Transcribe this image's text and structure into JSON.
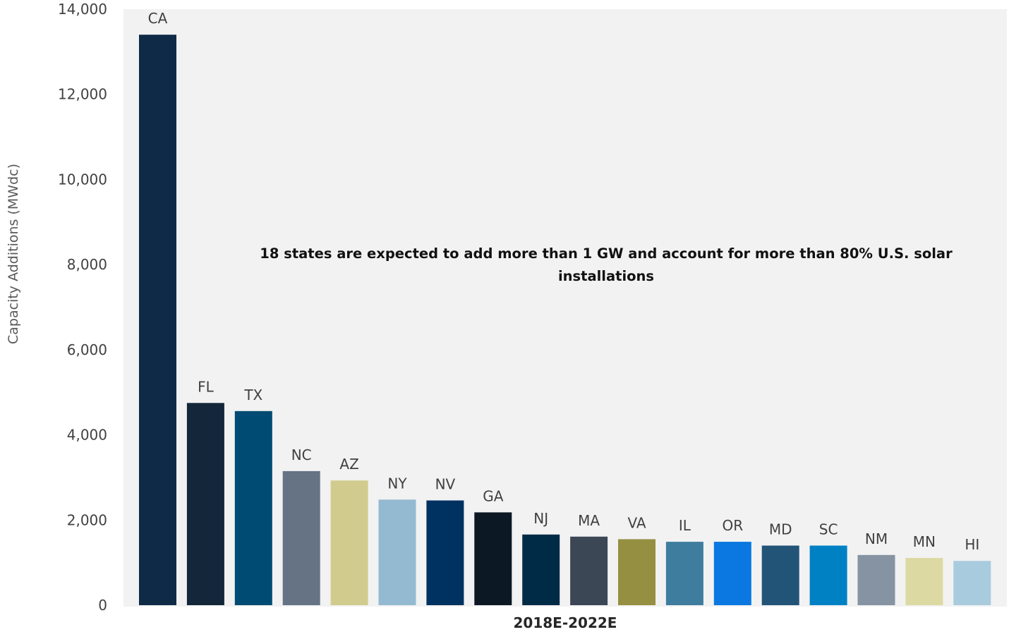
{
  "chart_data": {
    "type": "bar",
    "categories": [
      "CA",
      "FL",
      "TX",
      "NC",
      "AZ",
      "NY",
      "NV",
      "GA",
      "NJ",
      "MA",
      "VA",
      "IL",
      "OR",
      "MD",
      "SC",
      "NM",
      "MN",
      "HI"
    ],
    "values": [
      13400,
      4750,
      4560,
      3150,
      2930,
      2480,
      2460,
      2180,
      1660,
      1610,
      1550,
      1490,
      1490,
      1400,
      1400,
      1180,
      1110,
      1040
    ],
    "colors": [
      "#0e2a47",
      "#14263a",
      "#004b73",
      "#657385",
      "#d1cc8e",
      "#94bad1",
      "#003261",
      "#0c1824",
      "#002b47",
      "#3c4755",
      "#958f41",
      "#3f7d9f",
      "#0a78e0",
      "#225478",
      "#0081c4",
      "#8593a2",
      "#dcd9a3",
      "#a9cbde"
    ],
    "title": "",
    "xlabel": "2018E-2022E",
    "ylabel": "Capacity Additions (MWdc)",
    "ylim": [
      0,
      14000
    ],
    "yticks": [
      0,
      2000,
      4000,
      6000,
      8000,
      10000,
      12000,
      14000
    ],
    "ytick_labels": [
      "0",
      "2,000",
      "4,000",
      "6,000",
      "8,000",
      "10,000",
      "12,000",
      "14,000"
    ],
    "annotation": {
      "line1": "18 states are expected to add more than 1 GW and account for more than 80% U.S. solar",
      "line2": "installations"
    },
    "plot_background": "#f2f2f2",
    "grid": false,
    "legend": "none"
  }
}
